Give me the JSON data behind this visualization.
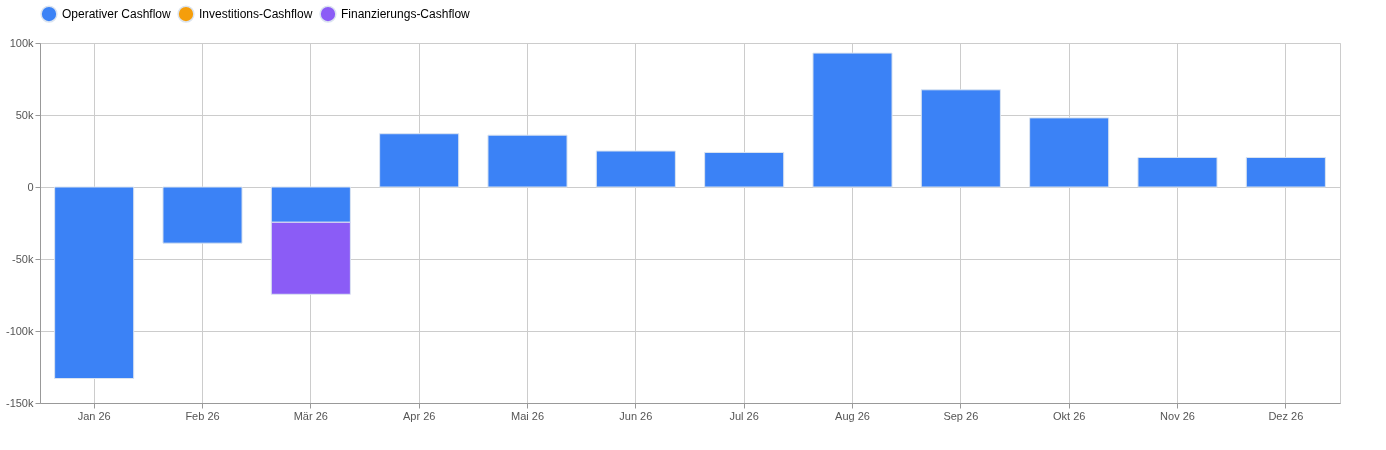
{
  "chart_data": {
    "type": "bar",
    "stacked": true,
    "categories": [
      "Jan 26",
      "Feb 26",
      "Mär 26",
      "Apr 26",
      "Mai 26",
      "Jun 26",
      "Jul 26",
      "Aug 26",
      "Sep 26",
      "Okt 26",
      "Nov 26",
      "Dez 26"
    ],
    "series": [
      {
        "name": "Operativer Cashflow",
        "color": "#3b82f6",
        "values": [
          -133000,
          -39000,
          -24500,
          37000,
          36000,
          25000,
          24000,
          93000,
          67500,
          48000,
          20500,
          20500
        ]
      },
      {
        "name": "Investitions-Cashflow",
        "color": "#f59e0b",
        "values": [
          null,
          null,
          null,
          null,
          null,
          null,
          null,
          null,
          null,
          null,
          null,
          null
        ]
      },
      {
        "name": "Finanzierungs-Cashflow",
        "color": "#8b5cf6",
        "values": [
          null,
          null,
          -50000,
          null,
          null,
          null,
          null,
          null,
          null,
          null,
          null,
          null
        ]
      }
    ],
    "ylim": [
      -150000,
      100000
    ],
    "yticks": [
      {
        "value": -150000,
        "label": "-150k"
      },
      {
        "value": -100000,
        "label": "-100k"
      },
      {
        "value": -50000,
        "label": "-50k"
      },
      0,
      {
        "value": 50000,
        "label": "50k"
      },
      {
        "value": 100000,
        "label": "100k"
      }
    ],
    "grid": true,
    "legend": "top"
  }
}
